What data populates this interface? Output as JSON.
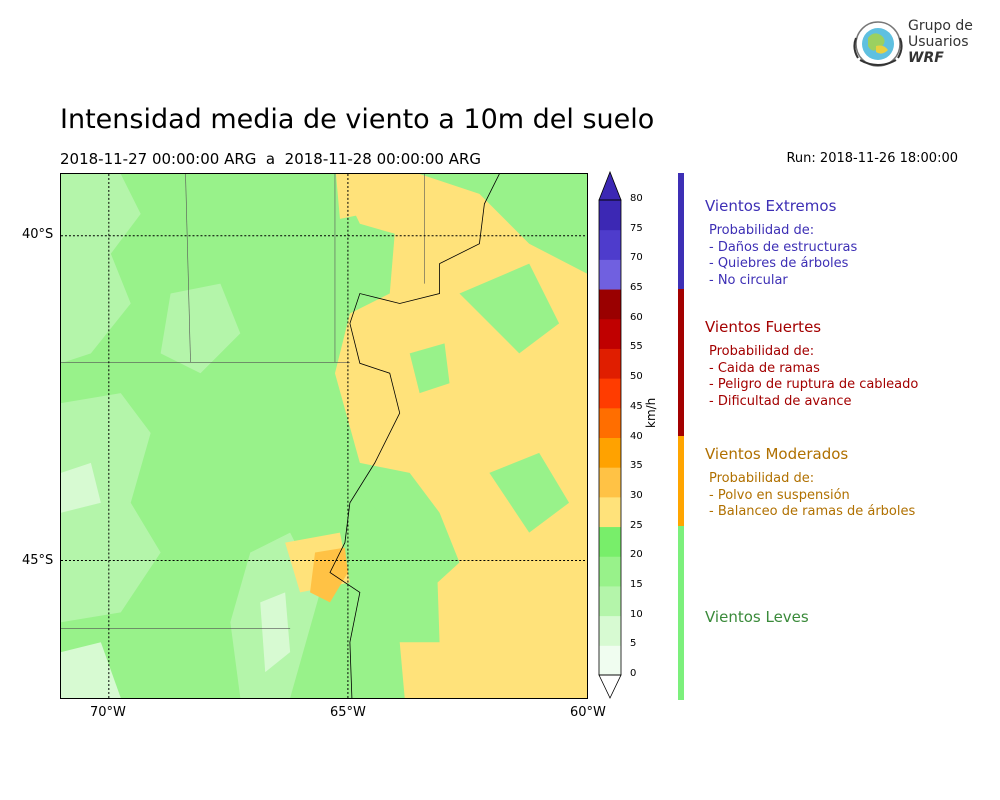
{
  "title": "Intensidad media de viento a 10m del suelo",
  "subtitle": "2018-11-27 00:00:00 ARG  a  2018-11-28 00:00:00 ARG",
  "run": "Run: 2018-11-26 18:00:00",
  "logo": {
    "line1": "Grupo de",
    "line2": "Usuarios",
    "line3": "WRF"
  },
  "map": {
    "lat_labels": [
      "40°S",
      "45°S"
    ],
    "lon_labels": [
      "70°W",
      "65°W",
      "60°W"
    ],
    "lon_range": [
      -71,
      -60
    ],
    "lat_range": [
      -47.1,
      -39.1
    ]
  },
  "colorbar": {
    "unit": "km/h",
    "ticks": [
      "0",
      "5",
      "10",
      "15",
      "20",
      "25",
      "30",
      "35",
      "40",
      "45",
      "50",
      "55",
      "60",
      "65",
      "70",
      "75",
      "80"
    ],
    "colors": [
      "#f0fdf0",
      "#d7fad2",
      "#b4f5aa",
      "#98f28a",
      "#78ee6a",
      "#ffe27a",
      "#ffc245",
      "#ffa200",
      "#ff6e00",
      "#ff3c00",
      "#e01e00",
      "#c00000",
      "#9a0000",
      "#7060e0",
      "#4e3ccc",
      "#3c28b4"
    ]
  },
  "categories": [
    {
      "title": "Vientos Extremos",
      "color": "#3d2fb5",
      "bar_color": "#3d2fb5",
      "items": [
        "Probabilidad de:",
        "- Daños de estructuras",
        "- Quiebres de árboles",
        "- No circular"
      ]
    },
    {
      "title": "Vientos Fuertes",
      "color": "#a30000",
      "bar_color": "#a30000",
      "items": [
        "Probabilidad de:",
        "- Caida de ramas",
        "- Peligro de ruptura de cableado",
        "- Dificultad de avance"
      ]
    },
    {
      "title": "Vientos Moderados",
      "color": "#b07000",
      "bar_color": "#ffa500",
      "items": [
        "Probabilidad de:",
        "- Polvo en suspensión",
        "- Balanceo de ramas de árboles"
      ]
    },
    {
      "title": "Vientos Leves",
      "color": "#3a8a3a",
      "bar_color": "#7cf07c",
      "items": []
    }
  ]
}
